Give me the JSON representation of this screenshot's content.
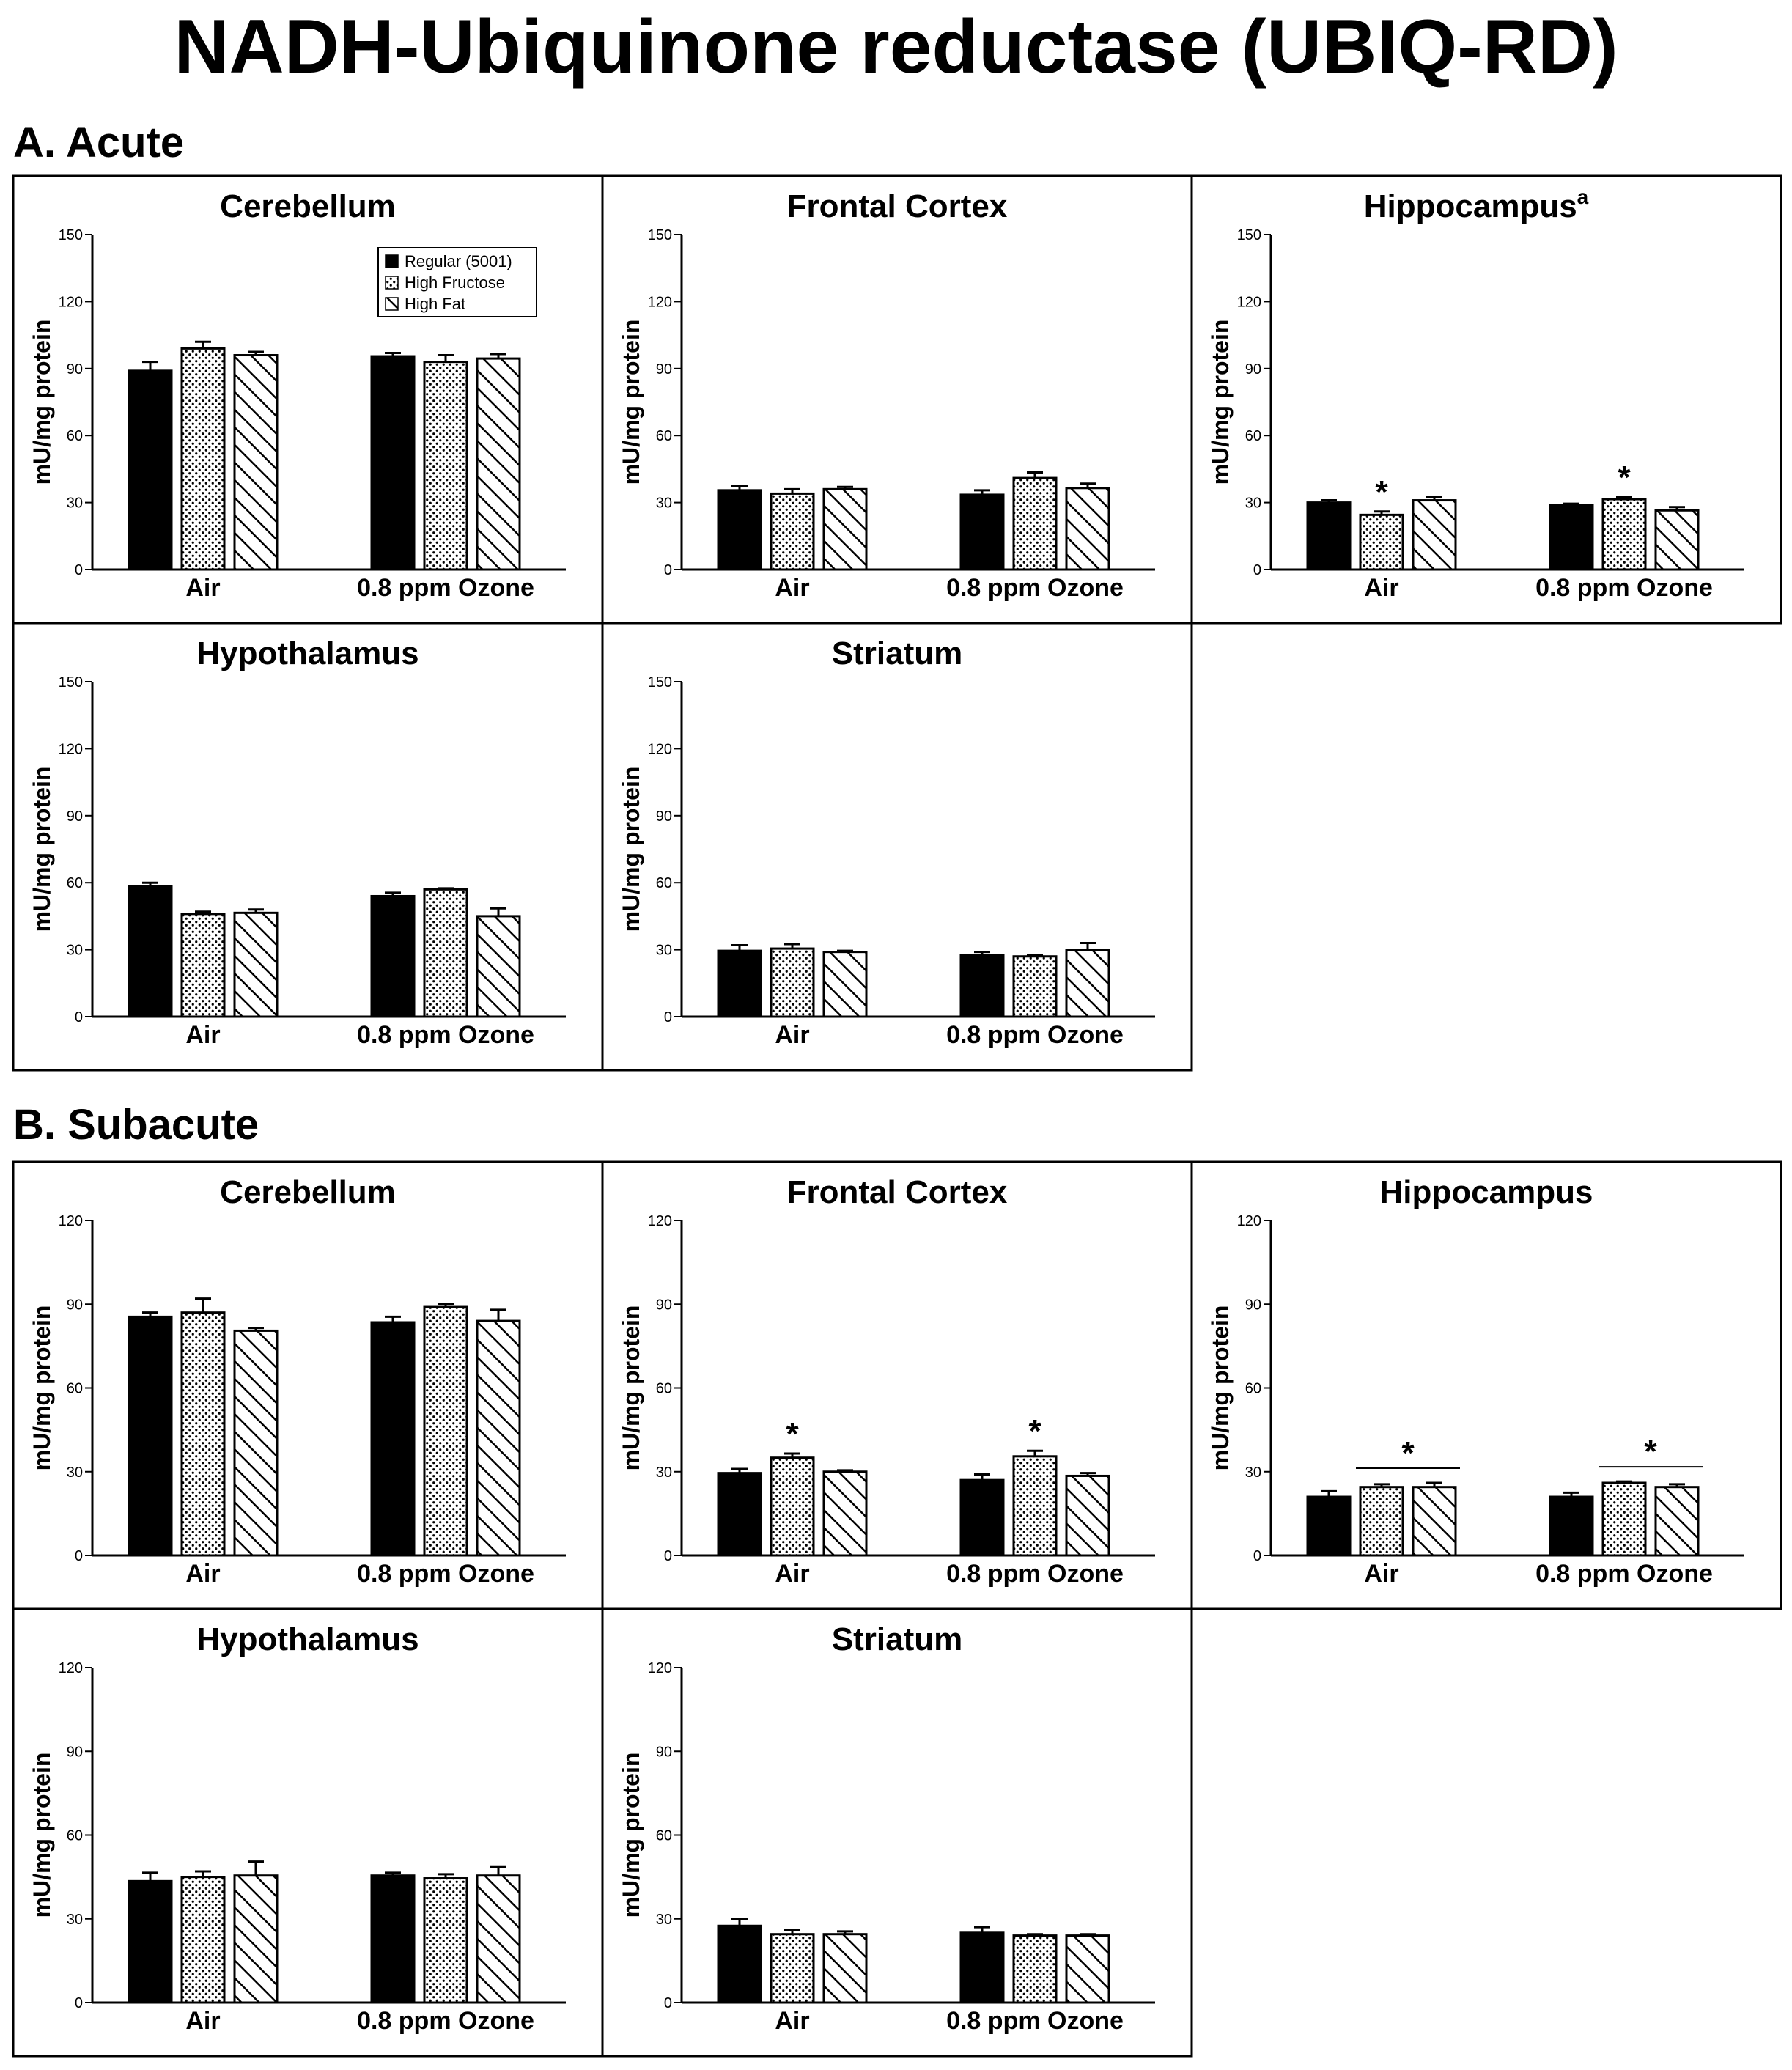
{
  "figure": {
    "title": "NADH-Ubiquinone reductase (UBIQ-RD)",
    "sections": [
      {
        "label": "A. Acute"
      },
      {
        "label": "B. Subacute"
      }
    ],
    "legend": [
      "Regular (5001)",
      "High Fructose",
      "High Fat"
    ],
    "significance_mark": "*"
  },
  "chart_data": [
    {
      "type": "bar",
      "section": "A. Acute",
      "title": "Cerebellum",
      "title_sup": "",
      "ylabel": "mU/mg protein",
      "ylim": [
        0,
        150
      ],
      "yticks": [
        0,
        30,
        60,
        90,
        120,
        150
      ],
      "categories": [
        "Air",
        "0.8 ppm Ozone"
      ],
      "series": [
        {
          "name": "Regular (5001)",
          "values": [
            89,
            95.5
          ],
          "errors": [
            4,
            1.5
          ]
        },
        {
          "name": "High Fructose",
          "values": [
            99,
            93
          ],
          "errors": [
            3,
            3
          ]
        },
        {
          "name": "High Fat",
          "values": [
            96,
            94.5
          ],
          "errors": [
            1.5,
            2
          ]
        }
      ],
      "legend": "top-right",
      "annotations": []
    },
    {
      "type": "bar",
      "section": "A. Acute",
      "title": "Frontal Cortex",
      "title_sup": "",
      "ylabel": "mU/mg protein",
      "ylim": [
        0,
        150
      ],
      "yticks": [
        0,
        30,
        60,
        90,
        120,
        150
      ],
      "categories": [
        "Air",
        "0.8 ppm Ozone"
      ],
      "series": [
        {
          "name": "Regular (5001)",
          "values": [
            35.5,
            33.5
          ],
          "errors": [
            2,
            2
          ]
        },
        {
          "name": "High Fructose",
          "values": [
            34,
            41
          ],
          "errors": [
            2,
            2.5
          ]
        },
        {
          "name": "High Fat",
          "values": [
            36,
            36.5
          ],
          "errors": [
            1,
            2
          ]
        }
      ],
      "annotations": []
    },
    {
      "type": "bar",
      "section": "A. Acute",
      "title": "Hippocampus",
      "title_sup": "a",
      "ylabel": "mU/mg protein",
      "ylim": [
        0,
        150
      ],
      "yticks": [
        0,
        30,
        60,
        90,
        120,
        150
      ],
      "categories": [
        "Air",
        "0.8 ppm Ozone"
      ],
      "series": [
        {
          "name": "Regular (5001)",
          "values": [
            30,
            29
          ],
          "errors": [
            1,
            0.5
          ]
        },
        {
          "name": "High Fructose",
          "values": [
            24.5,
            31.5
          ],
          "errors": [
            1.5,
            1
          ]
        },
        {
          "name": "High Fat",
          "values": [
            31,
            26.5
          ],
          "errors": [
            1.5,
            1.5
          ]
        }
      ],
      "annotations": [
        {
          "category": 0,
          "series": 1,
          "text": "*"
        },
        {
          "category": 1,
          "series": 1,
          "text": "*"
        }
      ]
    },
    {
      "type": "bar",
      "section": "A. Acute",
      "title": "Hypothalamus",
      "title_sup": "",
      "ylabel": "mU/mg protein",
      "ylim": [
        0,
        150
      ],
      "yticks": [
        0,
        30,
        60,
        90,
        120,
        150
      ],
      "categories": [
        "Air",
        "0.8 ppm Ozone"
      ],
      "series": [
        {
          "name": "Regular (5001)",
          "values": [
            58.5,
            54
          ],
          "errors": [
            1.5,
            1.5
          ]
        },
        {
          "name": "High Fructose",
          "values": [
            46,
            57
          ],
          "errors": [
            1,
            0.5
          ]
        },
        {
          "name": "High Fat",
          "values": [
            46.5,
            45
          ],
          "errors": [
            1.5,
            3.5
          ]
        }
      ],
      "annotations": []
    },
    {
      "type": "bar",
      "section": "A. Acute",
      "title": "Striatum",
      "title_sup": "",
      "ylabel": "mU/mg protein",
      "ylim": [
        0,
        150
      ],
      "yticks": [
        0,
        30,
        60,
        90,
        120,
        150
      ],
      "categories": [
        "Air",
        "0.8 ppm Ozone"
      ],
      "series": [
        {
          "name": "Regular (5001)",
          "values": [
            29.5,
            27.5
          ],
          "errors": [
            2.5,
            1.5
          ]
        },
        {
          "name": "High Fructose",
          "values": [
            30.5,
            27
          ],
          "errors": [
            2,
            0.5
          ]
        },
        {
          "name": "High Fat",
          "values": [
            29,
            30
          ],
          "errors": [
            0.5,
            3
          ]
        }
      ],
      "annotations": []
    },
    {
      "type": "bar",
      "section": "B. Subacute",
      "title": "Cerebellum",
      "title_sup": "",
      "ylabel": "mU/mg protein",
      "ylim": [
        0,
        120
      ],
      "yticks": [
        0,
        30,
        60,
        90,
        120
      ],
      "categories": [
        "Air",
        "0.8 ppm Ozone"
      ],
      "series": [
        {
          "name": "Regular (5001)",
          "values": [
            85.5,
            83.5
          ],
          "errors": [
            1.5,
            2
          ]
        },
        {
          "name": "High Fructose",
          "values": [
            87,
            89
          ],
          "errors": [
            5,
            1
          ]
        },
        {
          "name": "High Fat",
          "values": [
            80.5,
            84
          ],
          "errors": [
            1,
            4
          ]
        }
      ],
      "annotations": []
    },
    {
      "type": "bar",
      "section": "B. Subacute",
      "title": "Frontal Cortex",
      "title_sup": "",
      "ylabel": "mU/mg protein",
      "ylim": [
        0,
        120
      ],
      "yticks": [
        0,
        30,
        60,
        90,
        120
      ],
      "categories": [
        "Air",
        "0.8 ppm Ozone"
      ],
      "series": [
        {
          "name": "Regular (5001)",
          "values": [
            29.5,
            27
          ],
          "errors": [
            1.5,
            2
          ]
        },
        {
          "name": "High Fructose",
          "values": [
            35,
            35.5
          ],
          "errors": [
            1.5,
            2
          ]
        },
        {
          "name": "High Fat",
          "values": [
            30,
            28.5
          ],
          "errors": [
            0.5,
            1
          ]
        }
      ],
      "annotations": [
        {
          "category": 0,
          "series": 1,
          "text": "*"
        },
        {
          "category": 1,
          "series": 1,
          "text": "*"
        }
      ]
    },
    {
      "type": "bar",
      "section": "B. Subacute",
      "title": "Hippocampus",
      "title_sup": "",
      "ylabel": "mU/mg protein",
      "ylim": [
        0,
        120
      ],
      "yticks": [
        0,
        30,
        60,
        90,
        120
      ],
      "categories": [
        "Air",
        "0.8 ppm Ozone"
      ],
      "series": [
        {
          "name": "Regular (5001)",
          "values": [
            21,
            21
          ],
          "errors": [
            2,
            1.5
          ]
        },
        {
          "name": "High Fructose",
          "values": [
            24.5,
            26
          ],
          "errors": [
            1,
            0.5
          ]
        },
        {
          "name": "High Fat",
          "values": [
            24.5,
            24.5
          ],
          "errors": [
            1.5,
            1
          ]
        }
      ],
      "annotations": [
        {
          "category": 0,
          "series": [
            1,
            2
          ],
          "text": "*",
          "bracket": true
        },
        {
          "category": 1,
          "series": [
            1,
            2
          ],
          "text": "*",
          "bracket": true
        }
      ]
    },
    {
      "type": "bar",
      "section": "B. Subacute",
      "title": "Hypothalamus",
      "title_sup": "",
      "ylabel": "mU/mg protein",
      "ylim": [
        0,
        120
      ],
      "yticks": [
        0,
        30,
        60,
        90,
        120
      ],
      "categories": [
        "Air",
        "0.8 ppm Ozone"
      ],
      "series": [
        {
          "name": "Regular (5001)",
          "values": [
            43.5,
            45.5
          ],
          "errors": [
            3,
            1
          ]
        },
        {
          "name": "High Fructose",
          "values": [
            45,
            44.5
          ],
          "errors": [
            2,
            1.5
          ]
        },
        {
          "name": "High Fat",
          "values": [
            45.5,
            45.5
          ],
          "errors": [
            5,
            3
          ]
        }
      ],
      "annotations": []
    },
    {
      "type": "bar",
      "section": "B. Subacute",
      "title": "Striatum",
      "title_sup": "",
      "ylabel": "mU/mg protein",
      "ylim": [
        0,
        120
      ],
      "yticks": [
        0,
        30,
        60,
        90,
        120
      ],
      "categories": [
        "Air",
        "0.8 ppm Ozone"
      ],
      "series": [
        {
          "name": "Regular (5001)",
          "values": [
            27.5,
            25
          ],
          "errors": [
            2.5,
            2
          ]
        },
        {
          "name": "High Fructose",
          "values": [
            24.5,
            24
          ],
          "errors": [
            1.5,
            0.5
          ]
        },
        {
          "name": "High Fat",
          "values": [
            24.5,
            24
          ],
          "errors": [
            1,
            0.5
          ]
        }
      ],
      "annotations": []
    }
  ]
}
